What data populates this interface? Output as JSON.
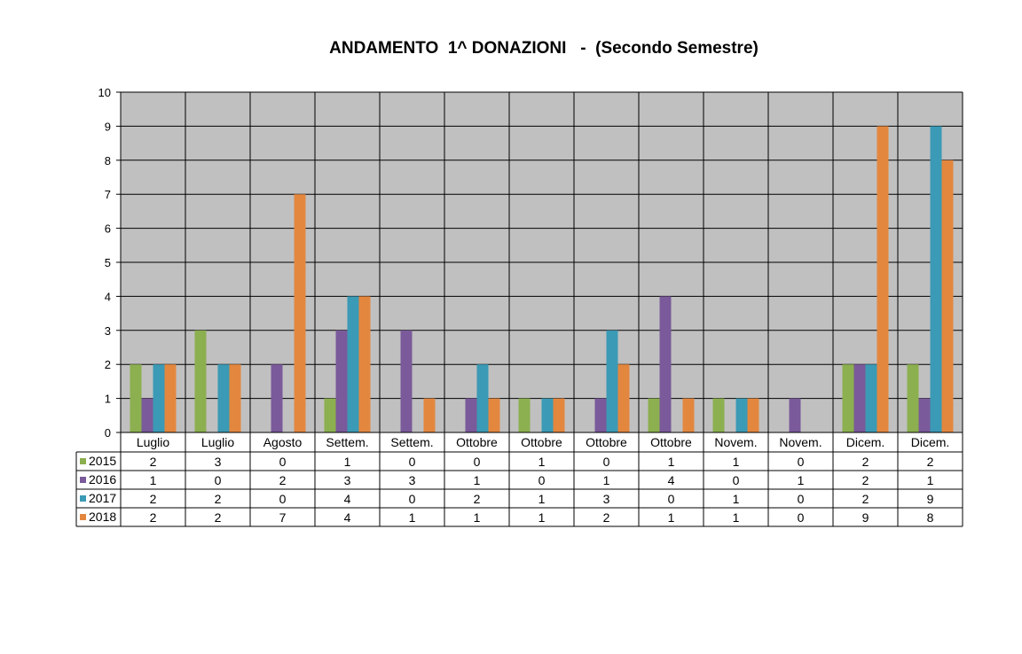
{
  "chart_data": {
    "type": "bar",
    "title": "ANDAMENTO  1^ DONAZIONI   -  (Secondo Semestre)",
    "xlabel": "",
    "ylabel": "",
    "ylim": [
      0,
      10
    ],
    "yticks": [
      0,
      1,
      2,
      3,
      4,
      5,
      6,
      7,
      8,
      9,
      10
    ],
    "grid": true,
    "legend": "data-table-left",
    "plot_background": "#c0c0c0",
    "categories": [
      "Luglio",
      "Luglio",
      "Agosto",
      "Settem.",
      "Settem.",
      "Ottobre",
      "Ottobre",
      "Ottobre",
      "Ottobre",
      "Novem.",
      "Novem.",
      "Dicem.",
      "Dicem."
    ],
    "series": [
      {
        "name": "2015",
        "color": "#8caf4f",
        "values": [
          2,
          3,
          0,
          1,
          0,
          0,
          1,
          0,
          1,
          1,
          0,
          2,
          2
        ]
      },
      {
        "name": "2016",
        "color": "#7a5a9a",
        "values": [
          1,
          0,
          2,
          3,
          3,
          1,
          0,
          1,
          4,
          0,
          1,
          2,
          1
        ]
      },
      {
        "name": "2017",
        "color": "#3b9ab5",
        "values": [
          2,
          2,
          0,
          4,
          0,
          2,
          1,
          3,
          0,
          1,
          0,
          2,
          9
        ]
      },
      {
        "name": "2018",
        "color": "#e3873f",
        "values": [
          2,
          2,
          7,
          4,
          1,
          1,
          1,
          2,
          1,
          1,
          0,
          9,
          8
        ]
      }
    ]
  }
}
